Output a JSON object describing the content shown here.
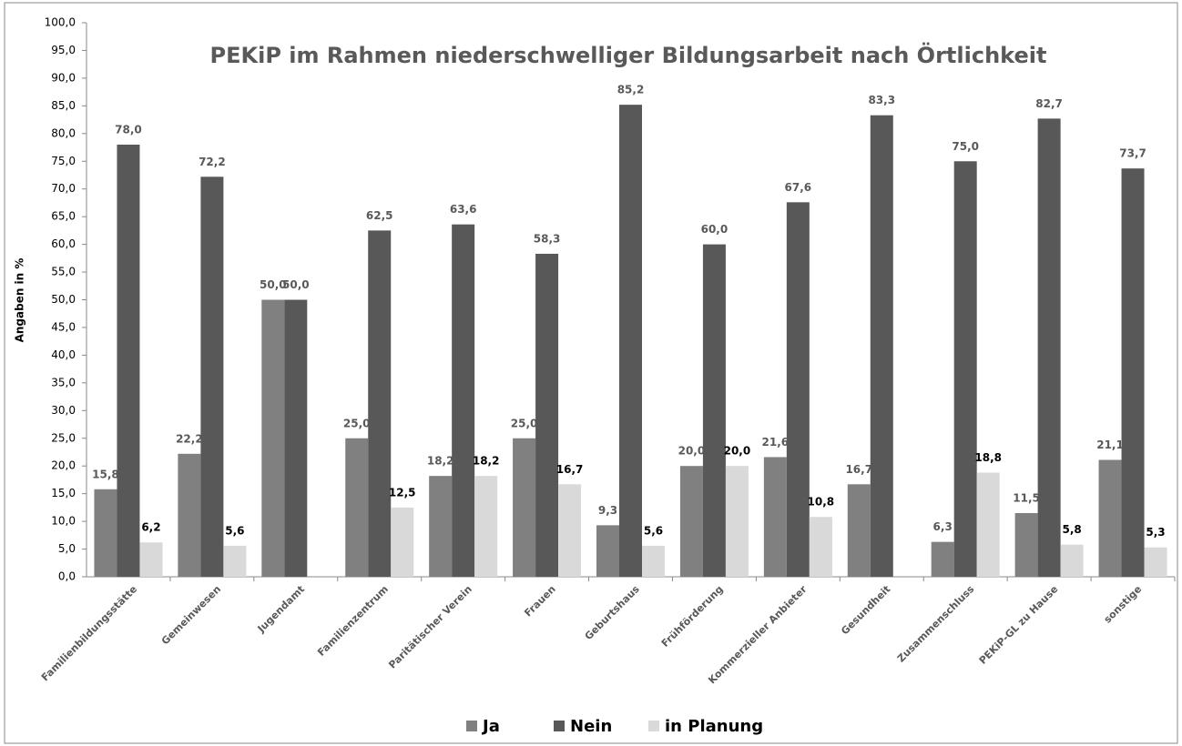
{
  "chart_data": {
    "type": "bar",
    "title": "PEKiP im Rahmen niederschwelliger Bildungsarbeit nach Örtlichkeit",
    "y_label": "Angaben in %",
    "categories": [
      "Familienbildungsstätte",
      "Gemeinwesen",
      "Jugendamt",
      "Familienzentrum",
      "Paritätischer Verein",
      "Frauen",
      "Geburtshaus",
      "Frühförderung",
      "Kommerzieller Anbieter",
      "Gesundheit",
      "Zusammenschluss",
      "PEKiP-GL zu Hause",
      "sonstige"
    ],
    "series": [
      {
        "name": "Ja",
        "color": "#808080",
        "values": [
          15.8,
          22.2,
          50.0,
          25.0,
          18.2,
          25.0,
          9.3,
          20.0,
          21.6,
          16.7,
          6.3,
          11.5,
          21.1
        ],
        "value_labels": [
          "15,8",
          "22,2",
          "50,0",
          "25,0",
          "18,2",
          "25,0",
          "9,3",
          "20,0",
          "21,6",
          "16,7",
          "6,3",
          "11,5",
          "21,1"
        ]
      },
      {
        "name": "Nein",
        "color": "#585858",
        "values": [
          78.0,
          72.2,
          50.0,
          62.5,
          63.6,
          58.3,
          85.2,
          60.0,
          67.6,
          83.3,
          75.0,
          82.7,
          73.7
        ],
        "value_labels": [
          "78,0",
          "72,2",
          "50,0",
          "62,5",
          "63,6",
          "58,3",
          "85,2",
          "60,0",
          "67,6",
          "83,3",
          "75,0",
          "82,7",
          "73,7"
        ]
      },
      {
        "name": "in Planung",
        "color": "#d9d9d9",
        "values": [
          6.2,
          5.6,
          null,
          12.5,
          18.2,
          16.7,
          5.6,
          20.0,
          10.8,
          null,
          18.8,
          5.8,
          5.3
        ],
        "value_labels": [
          "6,2",
          "5,6",
          null,
          "12,5",
          "18,2",
          "16,7",
          "5,6",
          "20,0",
          "10,8",
          null,
          "18,8",
          "5,8",
          "5,3"
        ]
      }
    ],
    "ylim": [
      0,
      100
    ],
    "yticks": [
      {
        "value": 0,
        "label": "0,0"
      },
      {
        "value": 5,
        "label": "5,0"
      },
      {
        "value": 10,
        "label": "10,0"
      },
      {
        "value": 15,
        "label": "15,0"
      },
      {
        "value": 20,
        "label": "20,0"
      },
      {
        "value": 25,
        "label": "25,0"
      },
      {
        "value": 30,
        "label": "30,0"
      },
      {
        "value": 35,
        "label": "35,0"
      },
      {
        "value": 40,
        "label": "40,0"
      },
      {
        "value": 45,
        "label": "45,0"
      },
      {
        "value": 50,
        "label": "50,0"
      },
      {
        "value": 55,
        "label": "55,0"
      },
      {
        "value": 60,
        "label": "60,0"
      },
      {
        "value": 65,
        "label": "65,0"
      },
      {
        "value": 70,
        "label": "70,0"
      },
      {
        "value": 75,
        "label": "75,0"
      },
      {
        "value": 80,
        "label": "80,0"
      },
      {
        "value": 85,
        "label": "85,0"
      },
      {
        "value": 90,
        "label": "90,0"
      },
      {
        "value": 95,
        "label": "95,0"
      },
      {
        "value": 100,
        "label": "100,0"
      }
    ],
    "grid": false,
    "legend": "bottom"
  }
}
